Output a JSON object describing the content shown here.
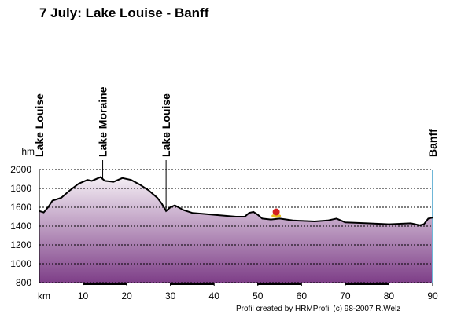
{
  "chart_data": {
    "type": "area",
    "title": "7 July: Lake Louise - Banff",
    "y_label": "hm",
    "x_label": "km",
    "credit": "Profil created by HRMProfil (c) 98-2007 R.Welz",
    "x": [
      0,
      1,
      2,
      3,
      5,
      7,
      9,
      11,
      12,
      14,
      15,
      17,
      19,
      21,
      23,
      25,
      27,
      28,
      29,
      30,
      31,
      33,
      35,
      40,
      45,
      47,
      48,
      49,
      50,
      51,
      53,
      55,
      58,
      63,
      66,
      68,
      70,
      75,
      80,
      85,
      87,
      88,
      89,
      90
    ],
    "values": [
      1560,
      1545,
      1600,
      1670,
      1700,
      1780,
      1850,
      1890,
      1880,
      1920,
      1880,
      1870,
      1910,
      1890,
      1840,
      1780,
      1700,
      1640,
      1560,
      1600,
      1620,
      1570,
      1540,
      1520,
      1500,
      1500,
      1540,
      1550,
      1520,
      1480,
      1470,
      1480,
      1460,
      1450,
      1460,
      1480,
      1440,
      1430,
      1420,
      1430,
      1410,
      1420,
      1480,
      1490
    ],
    "color": "#000000",
    "fill_top": "#f4eef4",
    "fill_bottom": "#7e3f88",
    "waypoints": [
      {
        "label": "Lake Louise",
        "km": 0
      },
      {
        "label": "Lake Moraine",
        "km": 14.5
      },
      {
        "label": "Lake Louise",
        "km": 29
      },
      {
        "label": "Banff",
        "km": 90
      }
    ],
    "xlim": [
      0,
      90
    ],
    "ylim": [
      800,
      2000
    ],
    "xticks": [
      10,
      20,
      30,
      40,
      50,
      60,
      70,
      80,
      90
    ],
    "yticks": [
      800,
      1000,
      1200,
      1400,
      1600,
      1800,
      2000
    ],
    "grid": true
  }
}
